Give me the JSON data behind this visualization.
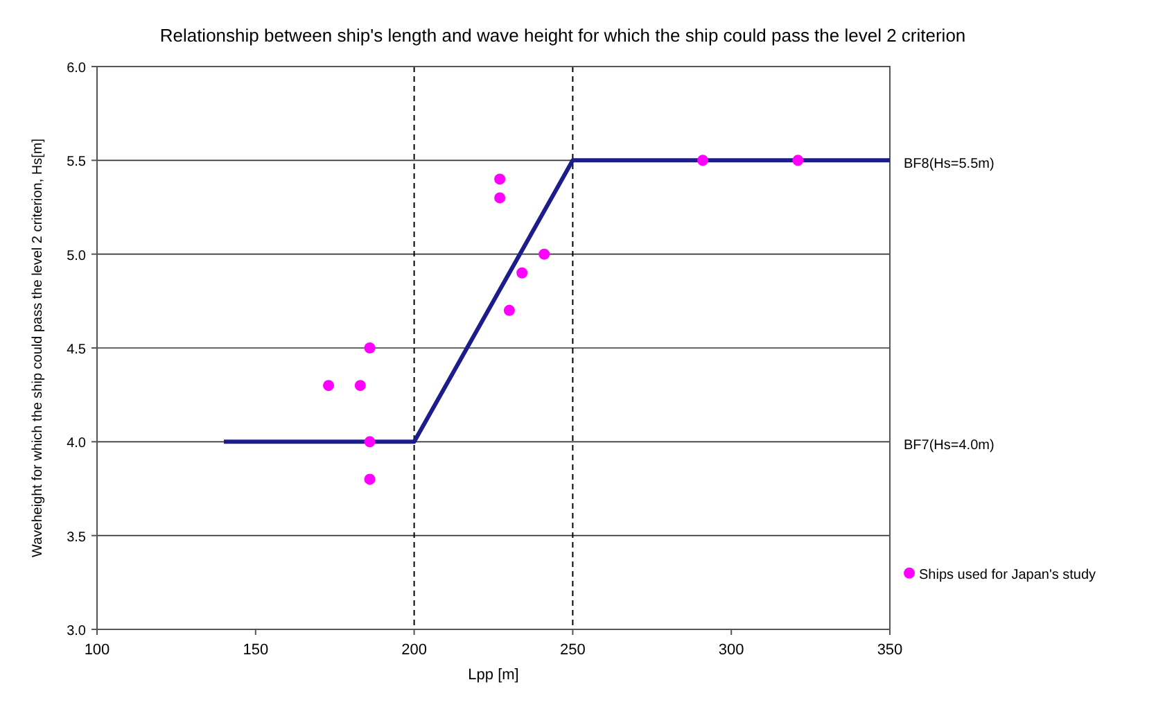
{
  "chart_data": {
    "type": "scatter",
    "title": "Relationship between ship's length and wave height for which the ship could pass the level 2 criterion",
    "xlabel": "Lpp [m]",
    "ylabel": "Waveheight for which the ship could pass the level 2 criterion, Hs[m]",
    "xlim": [
      100,
      350
    ],
    "xticks": [
      100,
      150,
      200,
      250,
      300,
      350
    ],
    "ylim": [
      3.0,
      6.0
    ],
    "yticks": [
      {
        "value": 3.0,
        "label": "3.0"
      },
      {
        "value": 3.5,
        "label": "3.5"
      },
      {
        "value": 4.0,
        "label": "4.0"
      },
      {
        "value": 4.5,
        "label": "4.5"
      },
      {
        "value": 5.0,
        "label": "5.0"
      },
      {
        "value": 5.5,
        "label": "5.5"
      },
      {
        "value": 6.0,
        "label": "6.0"
      }
    ],
    "grid": "y",
    "legend": "bottom right",
    "ref_lines": [
      {
        "axis": "x",
        "value": 200,
        "line_style": "dashed",
        "color": "#000000"
      },
      {
        "axis": "x",
        "value": 250,
        "line_style": "dashed",
        "color": "#000000"
      }
    ],
    "annotations": [
      "BF8(Hs=5.5m)",
      "BF7(Hs=4.0m)"
    ],
    "series": [
      {
        "type": "line",
        "color": "#1c1c8c",
        "marker": "none",
        "line_style": "solid",
        "x": [
          140,
          200,
          250,
          350
        ],
        "values": [
          4.0,
          4.0,
          5.5,
          5.5
        ]
      },
      {
        "name": "Ships used for Japan's study",
        "color": "#ff00ff",
        "marker": "circle",
        "x": [
          173,
          183,
          186,
          186,
          186,
          227,
          227,
          241,
          234,
          230,
          291,
          321
        ],
        "values": [
          4.3,
          4.3,
          4.5,
          4.0,
          3.8,
          5.4,
          5.3,
          5.0,
          4.9,
          4.7,
          5.5,
          5.5
        ]
      }
    ]
  }
}
